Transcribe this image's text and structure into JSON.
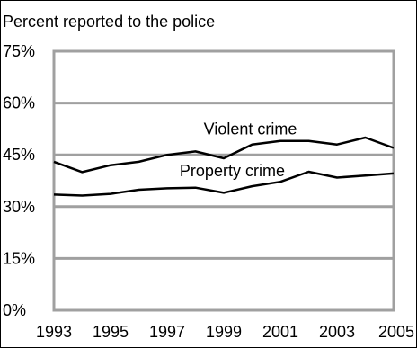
{
  "chart_data": {
    "type": "line",
    "title": "Percent reported to the police",
    "xlabel": "",
    "ylabel": "",
    "x": [
      1993,
      1994,
      1995,
      1996,
      1997,
      1998,
      1999,
      2000,
      2001,
      2002,
      2003,
      2004,
      2005
    ],
    "xlim": [
      1993,
      2005
    ],
    "ylim": [
      0,
      75
    ],
    "xticks": [
      "1993",
      "1995",
      "1997",
      "1999",
      "2001",
      "2003",
      "2005"
    ],
    "yticks": [
      "0%",
      "15%",
      "30%",
      "45%",
      "60%",
      "75%"
    ],
    "grid": "horizontal",
    "legend": "none",
    "series": [
      {
        "name": "Violent crime",
        "values": [
          43,
          40,
          42,
          43,
          45,
          46,
          44,
          48,
          49,
          49,
          48,
          50,
          47
        ]
      },
      {
        "name": "Property crime",
        "values": [
          33.5,
          33.2,
          33.7,
          34.9,
          35.3,
          35.5,
          34,
          35.9,
          37.2,
          40.1,
          38.4,
          39,
          39.6
        ]
      }
    ],
    "colors": {
      "line": "#000000",
      "grid": "#a0a0a0",
      "frame": "#a0a0a0"
    }
  }
}
